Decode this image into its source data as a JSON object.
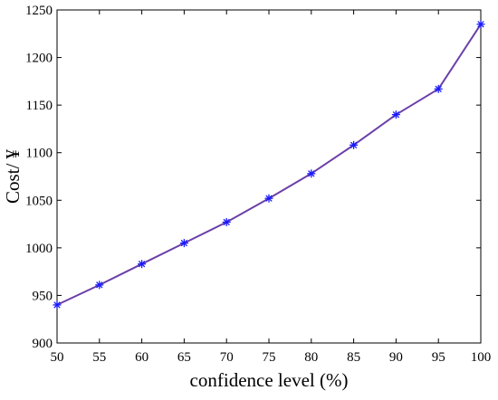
{
  "chart_data": {
    "type": "line",
    "title": "",
    "xlabel": "confidence level (%)",
    "ylabel": "Cost/ ¥",
    "x": [
      50,
      55,
      60,
      65,
      70,
      75,
      80,
      85,
      90,
      95,
      100
    ],
    "series": [
      {
        "values": [
          940,
          961,
          983,
          1005,
          1027,
          1052,
          1078,
          1108,
          1140,
          1167,
          1235
        ],
        "line_color": "#6b3fa8",
        "marker": "asterisk",
        "marker_color": "#1a1aff"
      }
    ],
    "xlim": [
      50,
      100
    ],
    "ylim": [
      900,
      1250
    ],
    "xticks": [
      "50",
      "55",
      "60",
      "65",
      "70",
      "75",
      "80",
      "85",
      "90",
      "95",
      "100"
    ],
    "yticks": [
      "900",
      "950",
      "1000",
      "1050",
      "1100",
      "1150",
      "1200",
      "1250"
    ],
    "grid": false,
    "legend": "none"
  }
}
